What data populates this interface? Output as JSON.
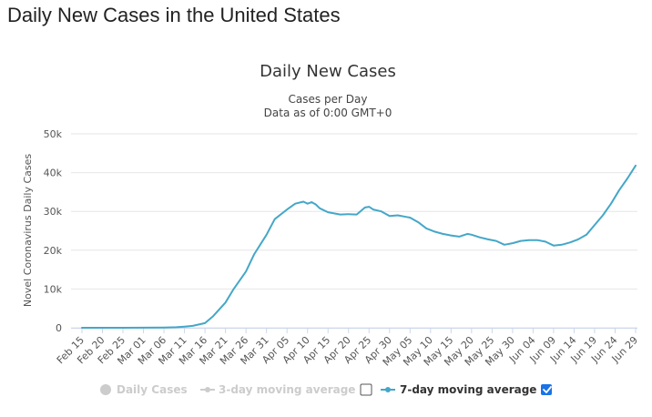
{
  "page": {
    "title": "Daily New Cases in the United States"
  },
  "colors": {
    "line": "#44a7c8",
    "grid": "#e6e6e6",
    "inactive": "#cccccc",
    "checkbox_checked": "#1a73e8"
  },
  "chart_data": {
    "type": "line",
    "title": "Daily New Cases",
    "subtitle_lines": [
      "Cases per Day",
      "Data as of 0:00 GMT+0"
    ],
    "xlabel": "",
    "ylabel": "Novel Coronavirus Daily Cases",
    "ylim": [
      0,
      50000
    ],
    "yticks": [
      0,
      10000,
      20000,
      30000,
      40000,
      50000
    ],
    "ytick_labels": [
      "0",
      "10k",
      "20k",
      "30k",
      "40k",
      "50k"
    ],
    "xtick_labels": [
      "Feb 15",
      "Feb 20",
      "Feb 25",
      "Mar 01",
      "Mar 06",
      "Mar 11",
      "Mar 16",
      "Mar 21",
      "Mar 26",
      "Mar 31",
      "Apr 05",
      "Apr 10",
      "Apr 15",
      "Apr 20",
      "Apr 25",
      "Apr 30",
      "May 05",
      "May 10",
      "May 15",
      "May 20",
      "May 25",
      "May 30",
      "Jun 04",
      "Jun 09",
      "Jun 14",
      "Jun 19",
      "Jun 24",
      "Jun 29"
    ],
    "grid": true,
    "legend_position": "bottom",
    "legend": [
      {
        "name": "Daily Cases",
        "visible": false,
        "marker": "circle"
      },
      {
        "name": "3-day moving average",
        "visible": false,
        "marker": "line-dot",
        "checked": false
      },
      {
        "name": "7-day moving average",
        "visible": true,
        "marker": "line-dot",
        "checked": true
      }
    ],
    "series": [
      {
        "name": "7-day moving average",
        "x": [
          "Feb 15",
          "Feb 20",
          "Feb 25",
          "Mar 01",
          "Mar 06",
          "Mar 09",
          "Mar 11",
          "Mar 13",
          "Mar 16",
          "Mar 18",
          "Mar 21",
          "Mar 23",
          "Mar 26",
          "Mar 28",
          "Mar 31",
          "Apr 02",
          "Apr 05",
          "Apr 07",
          "Apr 09",
          "Apr 10",
          "Apr 11",
          "Apr 12",
          "Apr 13",
          "Apr 15",
          "Apr 18",
          "Apr 20",
          "Apr 22",
          "Apr 24",
          "Apr 25",
          "Apr 26",
          "Apr 28",
          "Apr 30",
          "May 02",
          "May 04",
          "May 05",
          "May 07",
          "May 09",
          "May 11",
          "May 13",
          "May 15",
          "May 17",
          "May 19",
          "May 20",
          "May 22",
          "May 24",
          "May 26",
          "May 28",
          "May 30",
          "Jun 01",
          "Jun 03",
          "Jun 05",
          "Jun 07",
          "Jun 09",
          "Jun 11",
          "Jun 13",
          "Jun 15",
          "Jun 17",
          "Jun 19",
          "Jun 21",
          "Jun 23",
          "Jun 25",
          "Jun 27",
          "Jun 29"
        ],
        "values": [
          0,
          0,
          0,
          20,
          60,
          150,
          300,
          500,
          1200,
          3000,
          6500,
          10000,
          14500,
          19000,
          24000,
          28000,
          30500,
          32000,
          32500,
          32000,
          32400,
          31800,
          30800,
          29800,
          29200,
          29300,
          29200,
          31000,
          31200,
          30500,
          30000,
          28800,
          29000,
          28600,
          28400,
          27200,
          25600,
          24800,
          24200,
          23800,
          23500,
          24200,
          24000,
          23300,
          22800,
          22400,
          21400,
          21800,
          22400,
          22600,
          22600,
          22200,
          21200,
          21400,
          22000,
          22800,
          24000,
          26500,
          29000,
          32000,
          35500,
          38500,
          41800
        ]
      }
    ]
  }
}
